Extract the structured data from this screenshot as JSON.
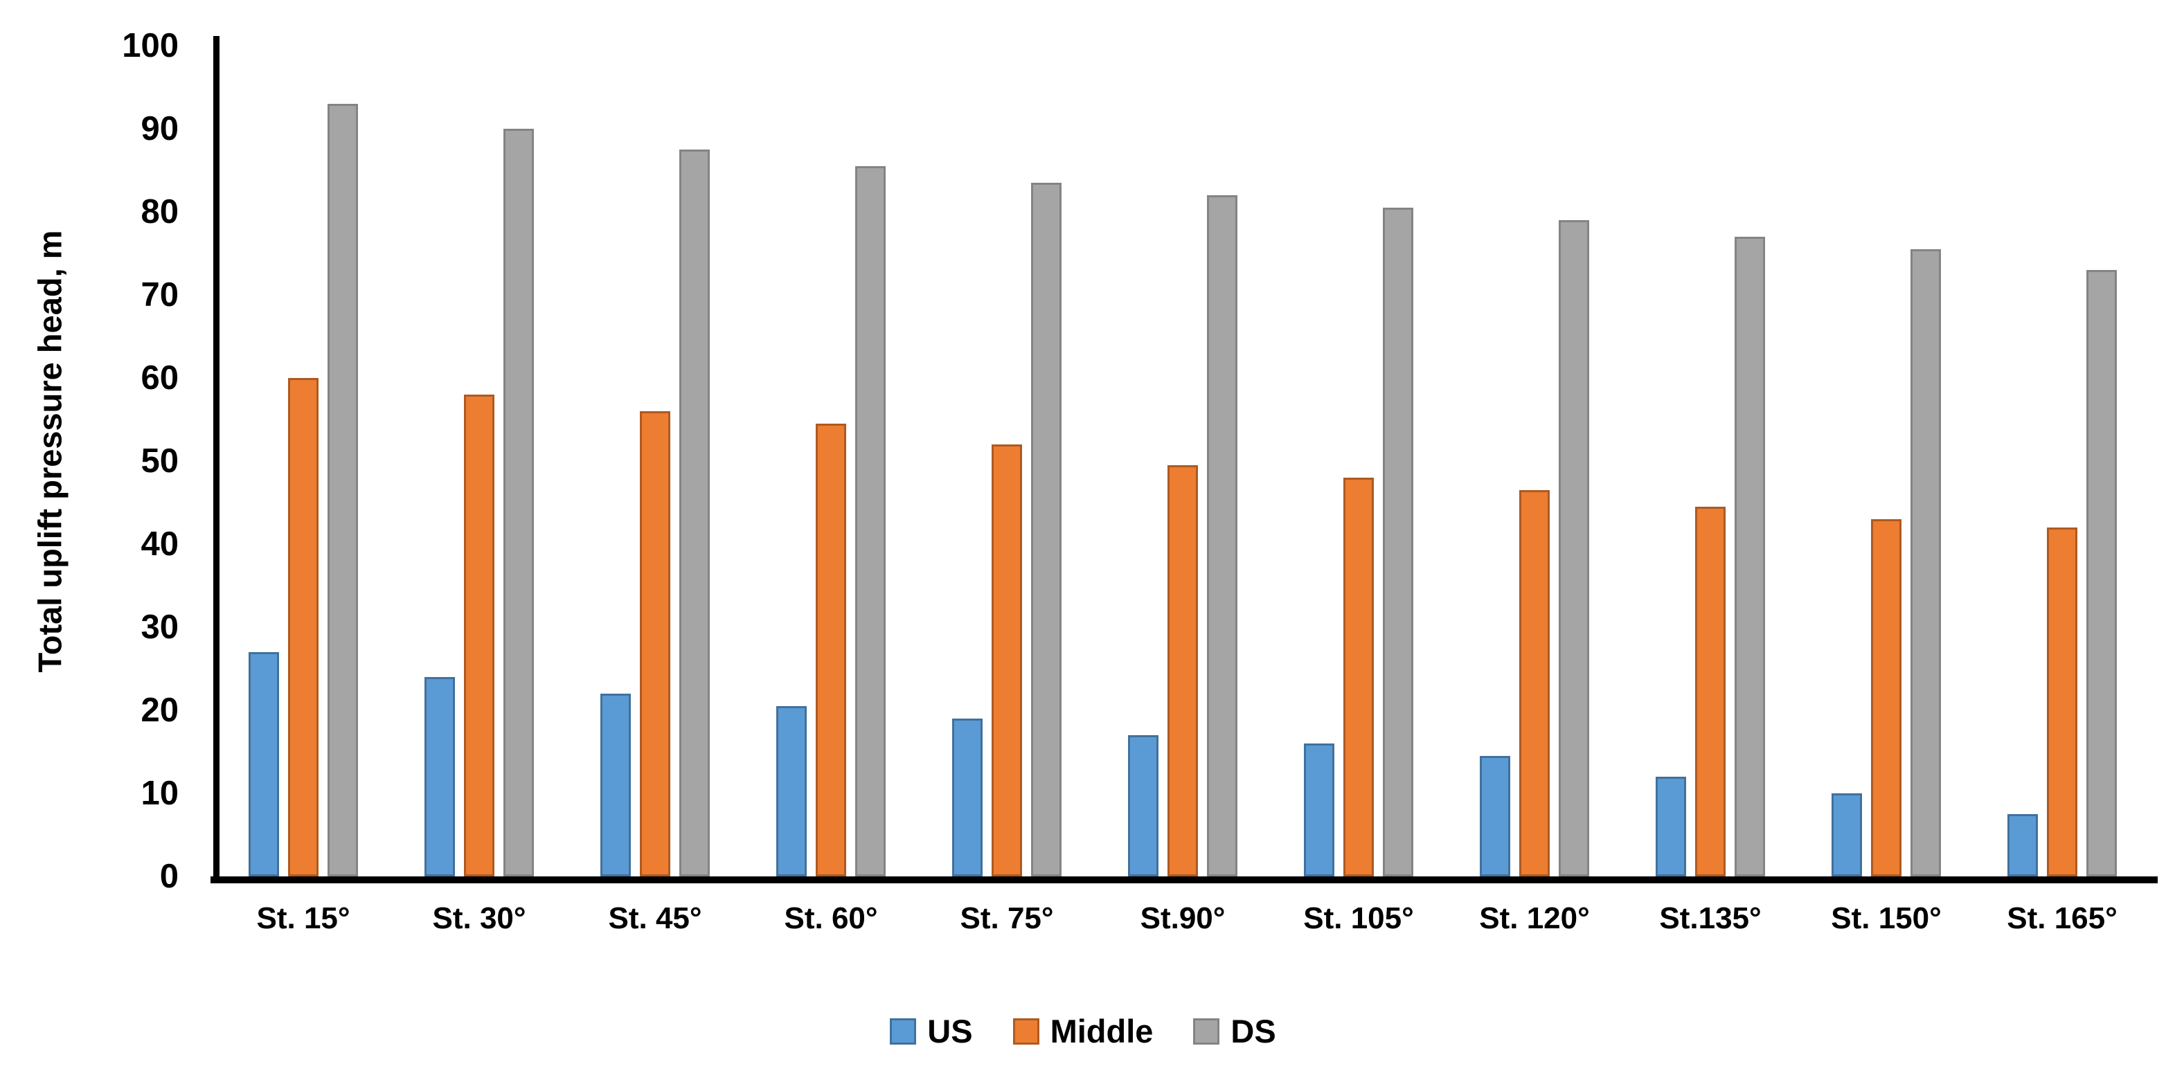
{
  "chart_data": {
    "type": "bar",
    "title": "",
    "ylabel": "Total uplift pressure head, m",
    "xlabel": "",
    "ylim": [
      0,
      100
    ],
    "ytick_step": 10,
    "grid": false,
    "legend_position": "bottom",
    "categories": [
      "St. 15°",
      "St. 30°",
      "St. 45°",
      "St. 60°",
      "St. 75°",
      "St.90°",
      "St. 105°",
      "St. 120°",
      "St.135°",
      "St. 150°",
      "St. 165°"
    ],
    "series": [
      {
        "name": "US",
        "color": "#5B9BD5",
        "border_color": "#41719C",
        "values": [
          27,
          24,
          22,
          20.5,
          19,
          17,
          16,
          14.5,
          12,
          10,
          7.5
        ]
      },
      {
        "name": "Middle",
        "color": "#ED7D31",
        "border_color": "#AE5A21",
        "values": [
          60,
          58,
          56,
          54.5,
          52,
          49.5,
          48,
          46.5,
          44.5,
          43,
          42
        ]
      },
      {
        "name": "DS",
        "color": "#A5A5A5",
        "border_color": "#848484",
        "values": [
          93,
          90,
          87.5,
          85.5,
          83.5,
          82,
          80.5,
          79,
          77,
          75.5,
          73
        ]
      }
    ],
    "ytick_labels": [
      "0",
      "10",
      "20",
      "30",
      "40",
      "50",
      "60",
      "70",
      "80",
      "90",
      "100"
    ]
  }
}
